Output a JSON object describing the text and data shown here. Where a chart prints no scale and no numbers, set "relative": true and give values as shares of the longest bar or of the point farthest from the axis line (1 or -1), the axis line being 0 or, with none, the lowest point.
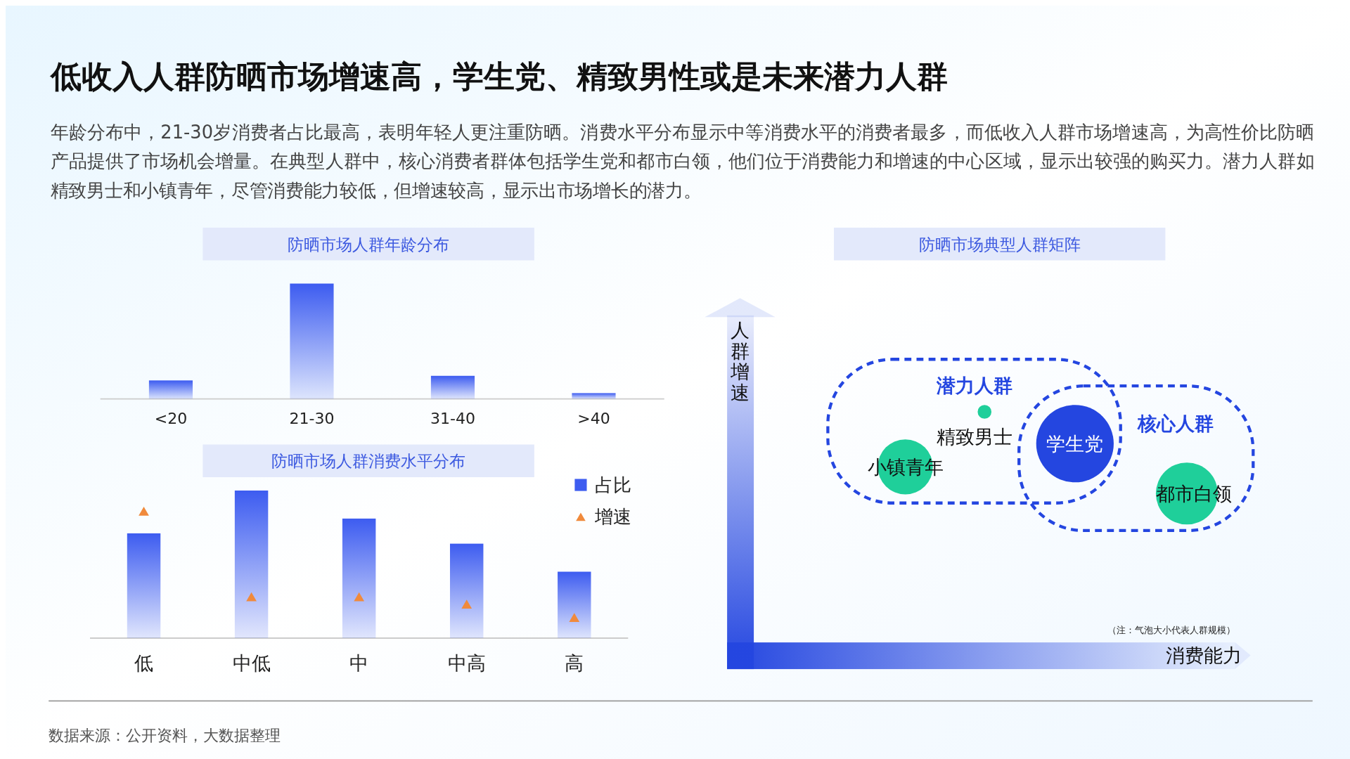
{
  "chart_data": [
    {
      "type": "other",
      "title": "低收入人群防晒市场增速高，学生党、精致男性或是未来潜力人群",
      "annotations": [
        "年龄分布中，21-30岁消费者占比最高，表明年轻人更注重防晒。消费水平分布显示中等消费水平的消费者最多，而低收入人群市场增速高，为高性价比防晒产品提供了市场机会增量。在典型人群中，核心消费者群体包括学生党和都市白领，他们位于消费能力和增速的中心区域，显示出较强的购买力。潜力人群如精致男士和小镇青年，尽管消费能力较低，但增速较高，显示出市场增长的潜力。",
        "数据来源：公开资料，大数据整理"
      ]
    },
    {
      "type": "bar",
      "title": "防晒市场人群年龄分布",
      "categories": [
        "<20",
        "21-30",
        "31-40",
        ">40"
      ],
      "values": [
        0.16,
        1,
        0.2,
        0.05
      ],
      "color": "#3d5cf0",
      "relative": true
    },
    {
      "type": "bar",
      "title": "防晒市场人群消费水平分布",
      "categories": [
        "低",
        "中低",
        "中",
        "中高",
        "高"
      ],
      "relative": true,
      "legend": "top right",
      "marker": "triangle",
      "series": [
        {
          "name": "占比",
          "type": "bar",
          "color": "#3d5cf0",
          "values": [
            0.71,
            1,
            0.81,
            0.64,
            0.45
          ]
        },
        {
          "name": "增速",
          "type": "scatter",
          "color": "#f08a3c",
          "values": [
            0.86,
            0.28,
            0.28,
            0.23,
            0.14
          ]
        }
      ]
    },
    {
      "type": "other",
      "title": "防晒市场典型人群矩阵",
      "xlabel": "消费能力",
      "ylabel": "人群增速",
      "annotations": [
        "潜力人群",
        "核心人群",
        "（注：气泡大小代表人群规模）",
        "精致男士",
        "小镇青年",
        "学生党",
        "都市白领"
      ]
    }
  ]
}
